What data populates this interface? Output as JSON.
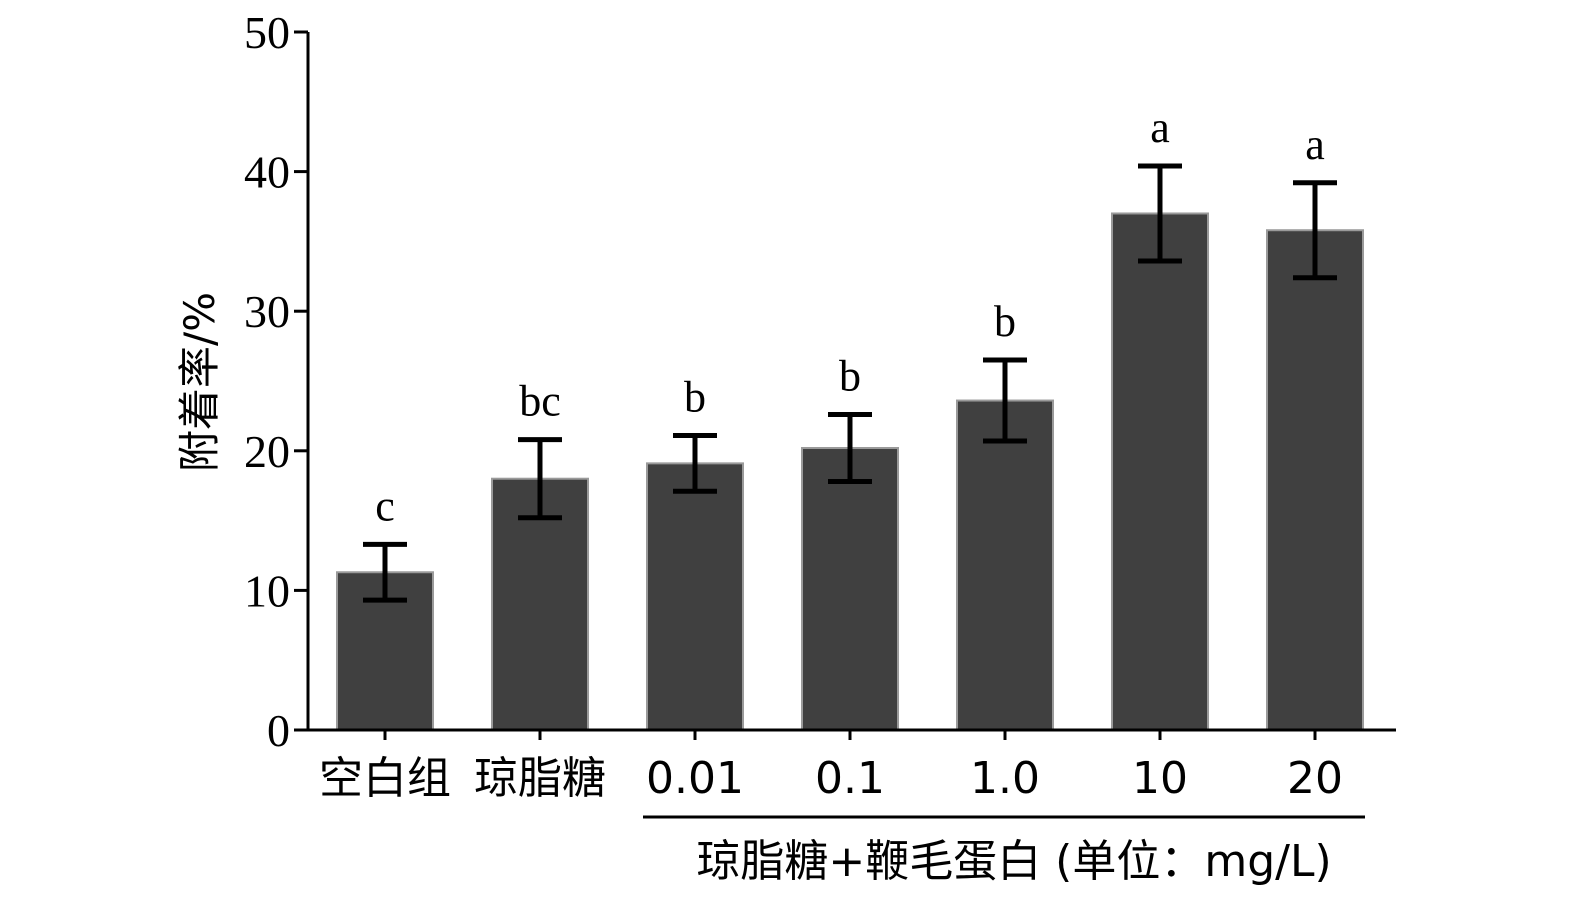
{
  "chart_data": {
    "type": "bar",
    "title": "",
    "xlabel": "",
    "ylabel": "附着率/%",
    "ylim": [
      0,
      50
    ],
    "yticks": [
      0,
      10,
      20,
      30,
      40,
      50
    ],
    "categories": [
      "空白组",
      "琼脂糖",
      "0.01",
      "0.1",
      "1.0",
      "10",
      "20"
    ],
    "series": [
      {
        "values": [
          11.3,
          18.0,
          19.1,
          20.2,
          23.6,
          37.0,
          35.8
        ],
        "errors": [
          2.0,
          2.8,
          2.0,
          2.4,
          2.9,
          3.4,
          3.4
        ],
        "significance": [
          "c",
          "bc",
          "b",
          "b",
          "b",
          "a",
          "a"
        ]
      }
    ],
    "group_annotation": {
      "label": "琼脂糖+鞭毛蛋白 (单位：mg/L)",
      "from_category": 2,
      "to_category": 6
    },
    "colors": {
      "bar": "#404040",
      "bar_edge": "#9a9a9a",
      "axis": "#000000"
    },
    "grid": false,
    "legend": "none"
  }
}
